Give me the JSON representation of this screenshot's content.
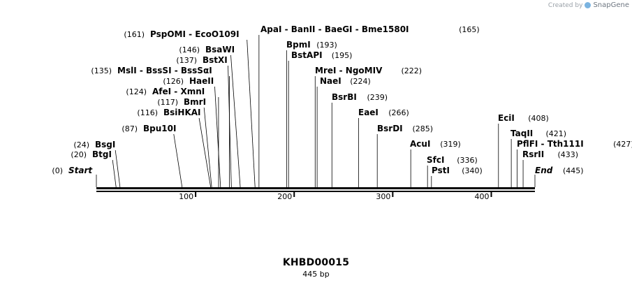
{
  "credit": {
    "prefix": "Created by",
    "brand": "SnapGene"
  },
  "sequence": {
    "name": "KHBD00015",
    "length_label": "445 bp",
    "length": 445
  },
  "scale": {
    "ticks": [
      100,
      200,
      300,
      400
    ]
  },
  "ends": [
    {
      "name": "Start",
      "site": 0,
      "pos_label": "(0)"
    },
    {
      "name": "End",
      "site": 445,
      "pos_label": "(445)"
    }
  ],
  "sites": [
    {
      "enzymes": [
        "BtgI"
      ],
      "site": 20,
      "pos_label": "(20)"
    },
    {
      "enzymes": [
        "BsgI"
      ],
      "site": 24,
      "pos_label": "(24)"
    },
    {
      "enzymes": [
        "Bpu10I"
      ],
      "site": 87,
      "pos_label": "(87)"
    },
    {
      "enzymes": [
        "BsiHKAI"
      ],
      "site": 116,
      "pos_label": "(116)"
    },
    {
      "enzymes": [
        "BmrI"
      ],
      "site": 117,
      "pos_label": "(117)"
    },
    {
      "enzymes": [
        "AfeI",
        "XmnI"
      ],
      "site": 124,
      "pos_label": "(124)"
    },
    {
      "enzymes": [
        "HaeII"
      ],
      "site": 126,
      "pos_label": "(126)"
    },
    {
      "enzymes": [
        "MslI",
        "BssSI",
        "BssSαI"
      ],
      "site": 135,
      "pos_label": "(135)"
    },
    {
      "enzymes": [
        "BstXI"
      ],
      "site": 137,
      "pos_label": "(137)"
    },
    {
      "enzymes": [
        "BsaWI"
      ],
      "site": 146,
      "pos_label": "(146)"
    },
    {
      "enzymes": [
        "PspOMI",
        "EcoO109I"
      ],
      "site": 161,
      "pos_label": "(161)"
    },
    {
      "enzymes": [
        "ApaI",
        "BanII",
        "BaeGI",
        "Bme1580I"
      ],
      "site": 165,
      "pos_label": "(165)"
    },
    {
      "enzymes": [
        "BpmI"
      ],
      "site": 193,
      "pos_label": "(193)"
    },
    {
      "enzymes": [
        "BstAPI"
      ],
      "site": 195,
      "pos_label": "(195)"
    },
    {
      "enzymes": [
        "MreI",
        "NgoMIV"
      ],
      "site": 222,
      "pos_label": "(222)"
    },
    {
      "enzymes": [
        "NaeI"
      ],
      "site": 224,
      "pos_label": "(224)"
    },
    {
      "enzymes": [
        "BsrBI"
      ],
      "site": 239,
      "pos_label": "(239)"
    },
    {
      "enzymes": [
        "EaeI"
      ],
      "site": 266,
      "pos_label": "(266)"
    },
    {
      "enzymes": [
        "BsrDI"
      ],
      "site": 285,
      "pos_label": "(285)"
    },
    {
      "enzymes": [
        "AcuI"
      ],
      "site": 319,
      "pos_label": "(319)"
    },
    {
      "enzymes": [
        "SfcI"
      ],
      "site": 336,
      "pos_label": "(336)"
    },
    {
      "enzymes": [
        "PstI"
      ],
      "site": 340,
      "pos_label": "(340)"
    },
    {
      "enzymes": [
        "EciI"
      ],
      "site": 408,
      "pos_label": "(408)"
    },
    {
      "enzymes": [
        "TaqII"
      ],
      "site": 421,
      "pos_label": "(421)"
    },
    {
      "enzymes": [
        "PflFI",
        "Tth111I"
      ],
      "site": 427,
      "pos_label": "(427)"
    },
    {
      "enzymes": [
        "RsrII"
      ],
      "site": 433,
      "pos_label": "(433)"
    }
  ]
}
